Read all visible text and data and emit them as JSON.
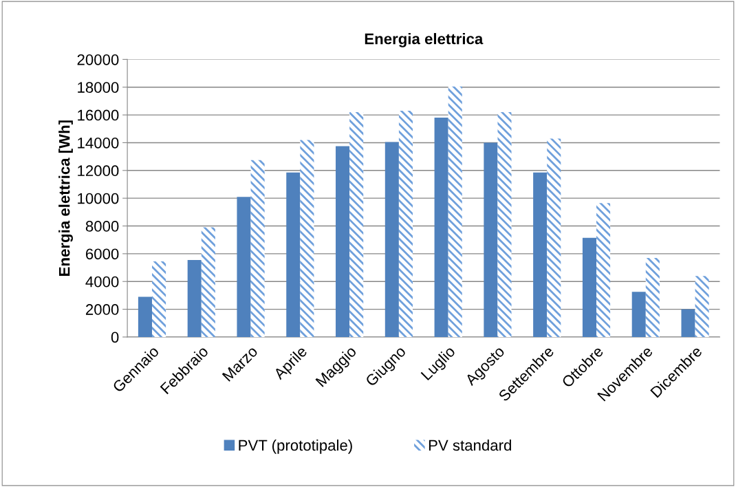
{
  "chart_data": {
    "type": "bar",
    "title": "Energia elettrica",
    "ylabel": "Energia elettrica [Wh]",
    "categories": [
      "Gennaio",
      "Febbraio",
      "Marzo",
      "Aprile",
      "Maggio",
      "Giugno",
      "Luglio",
      "Agosto",
      "Settembre",
      "Ottobre",
      "Novembre",
      "Dicembre"
    ],
    "series": [
      {
        "name": "PVT (prototipale)",
        "color": "#4f81bd",
        "values": [
          2900,
          5550,
          10100,
          11850,
          13750,
          14050,
          15800,
          14000,
          11850,
          7150,
          3250,
          2000
        ]
      },
      {
        "name": "PV standard",
        "color": "#6fa0dc",
        "values": [
          5450,
          7900,
          12750,
          14200,
          16200,
          16300,
          18050,
          16200,
          14300,
          9650,
          5700,
          4400
        ]
      }
    ],
    "ylim": [
      0,
      20000
    ],
    "yticks": [
      0,
      2000,
      4000,
      6000,
      8000,
      10000,
      12000,
      14000,
      16000,
      18000,
      20000
    ],
    "grid": "y",
    "legend": "bottom"
  }
}
